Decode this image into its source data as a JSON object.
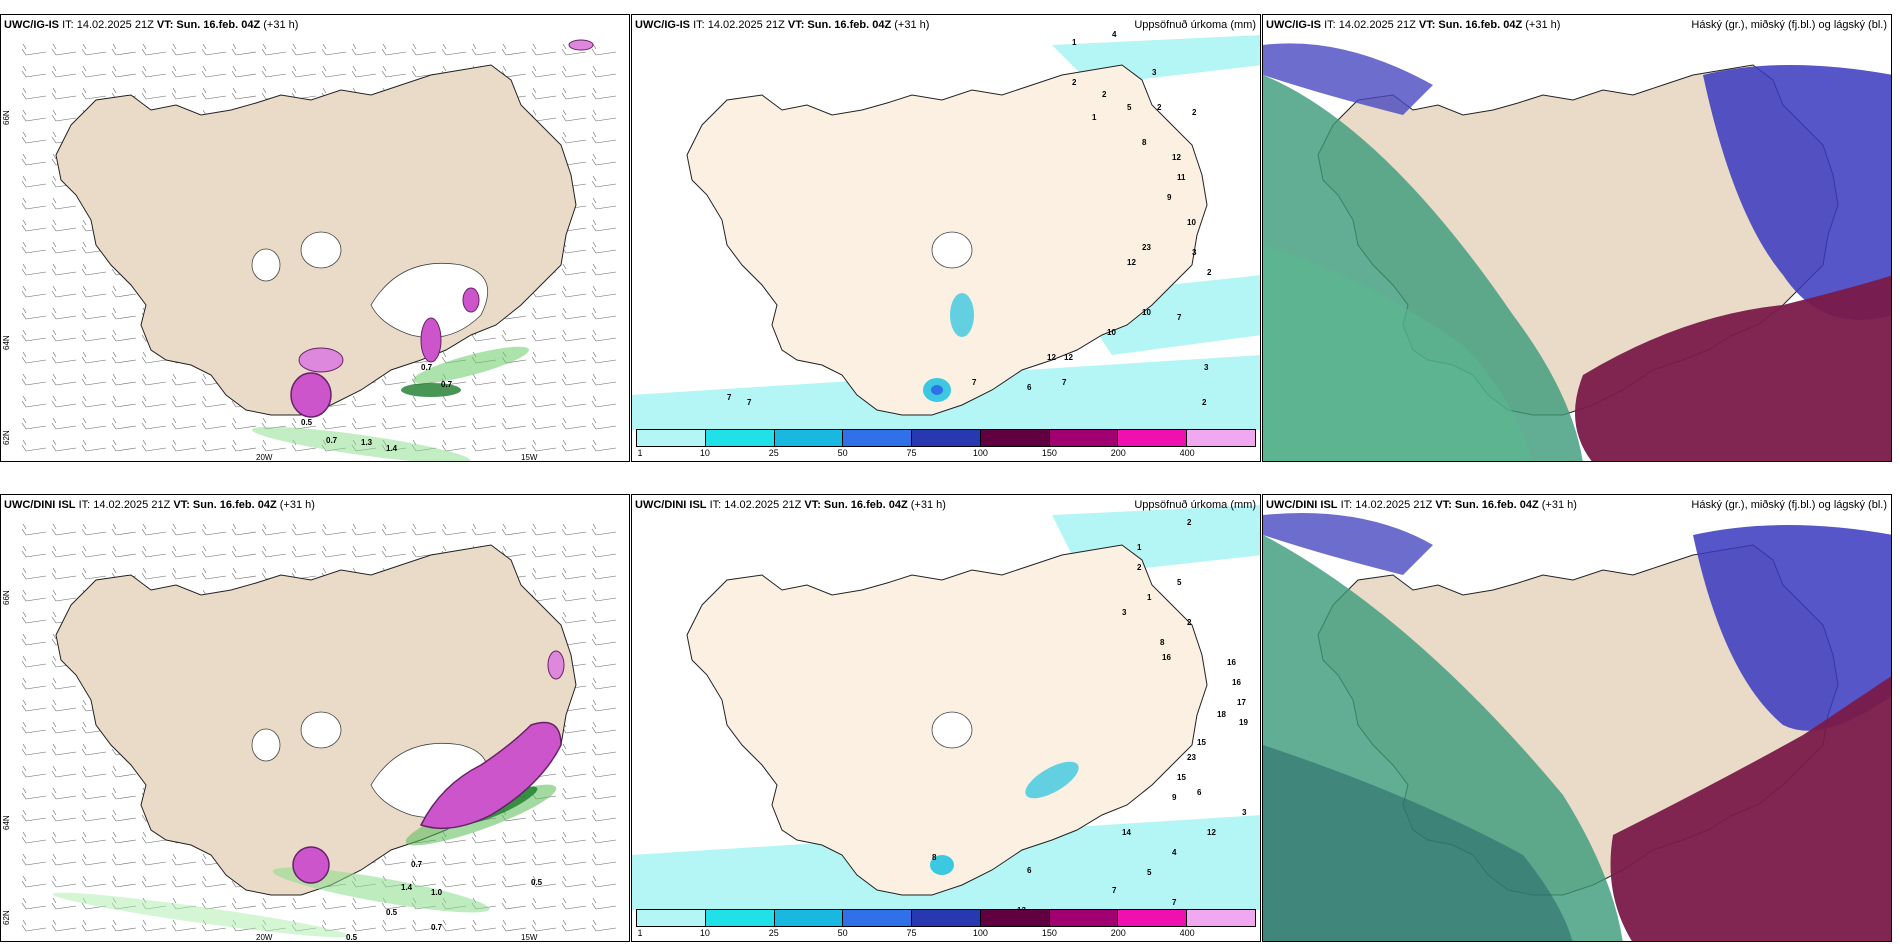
{
  "panels": {
    "top_left": {
      "model": "UWC/IG-IS",
      "it": "IT: 14.02.2025 21Z",
      "vt": "VT: Sun. 16.feb. 04Z",
      "lead": "(+31 h)"
    },
    "top_mid": {
      "model": "UWC/IG-IS",
      "it": "IT: 14.02.2025 21Z",
      "vt": "VT: Sun. 16.feb. 04Z",
      "lead": "(+31 h)",
      "title": "Uppsöfnuð úrkoma (mm)"
    },
    "top_right": {
      "model": "UWC/IG-IS",
      "it": "IT: 14.02.2025 21Z",
      "vt": "VT: Sun. 16.feb. 04Z",
      "lead": "(+31 h)",
      "title": "Háský (gr.), miðský (fj.bl.) og lágský (bl.)"
    },
    "bot_left": {
      "model": "UWC/DINI ISL",
      "it": "IT: 14.02.2025 21Z",
      "vt": "VT: Sun. 16.feb. 04Z",
      "lead": "(+31 h)"
    },
    "bot_mid": {
      "model": "UWC/DINI ISL",
      "it": "IT: 14.02.2025 21Z",
      "vt": "VT: Sun. 16.feb. 04Z",
      "lead": "(+31 h)",
      "title": "Uppsöfnuð úrkoma (mm)"
    },
    "bot_right": {
      "model": "UWC/DINI ISL",
      "it": "IT: 14.02.2025 21Z",
      "vt": "VT: Sun. 16.feb. 04Z",
      "lead": "(+31 h)",
      "title": "Háský (gr.), miðský (fj.bl.) og lágský (bl.)"
    }
  },
  "axes": {
    "lat_66": "66N",
    "lat_64": "64N",
    "lat_62": "62N",
    "lon_20": "20W",
    "lon_15": "15W"
  },
  "colorbar": {
    "ticks": [
      "1",
      "10",
      "25",
      "50",
      "75",
      "100",
      "150",
      "200",
      "400"
    ],
    "colors": [
      "#b4f5f5",
      "#20e0e8",
      "#18b8e0",
      "#3070e8",
      "#2838b0",
      "#600040",
      "#a00070",
      "#f010b0",
      "#f0a8f0"
    ]
  },
  "precip_top": [
    {
      "v": "1"
    },
    {
      "v": "4"
    },
    {
      "v": "3"
    },
    {
      "v": "2"
    },
    {
      "v": "2"
    },
    {
      "v": "5"
    },
    {
      "v": "2"
    },
    {
      "v": "1"
    },
    {
      "v": "8"
    },
    {
      "v": "2"
    },
    {
      "v": "12"
    },
    {
      "v": "11"
    },
    {
      "v": "9"
    },
    {
      "v": "10"
    },
    {
      "v": "23"
    },
    {
      "v": "12"
    },
    {
      "v": "3"
    },
    {
      "v": "2"
    },
    {
      "v": "10"
    },
    {
      "v": "7"
    },
    {
      "v": "10"
    },
    {
      "v": "12"
    },
    {
      "v": "12"
    },
    {
      "v": "3"
    },
    {
      "v": "7"
    },
    {
      "v": "6"
    },
    {
      "v": "7"
    },
    {
      "v": "7"
    },
    {
      "v": "7"
    },
    {
      "v": "2"
    }
  ],
  "precip_bot": [
    {
      "v": "2"
    },
    {
      "v": "1"
    },
    {
      "v": "2"
    },
    {
      "v": "5"
    },
    {
      "v": "1"
    },
    {
      "v": "3"
    },
    {
      "v": "2"
    },
    {
      "v": "8"
    },
    {
      "v": "16"
    },
    {
      "v": "16"
    },
    {
      "v": "17"
    },
    {
      "v": "19"
    },
    {
      "v": "18"
    },
    {
      "v": "15"
    },
    {
      "v": "23"
    },
    {
      "v": "15"
    },
    {
      "v": "9"
    },
    {
      "v": "14"
    },
    {
      "v": "12"
    },
    {
      "v": "5"
    },
    {
      "v": "4"
    },
    {
      "v": "6"
    },
    {
      "v": "3"
    },
    {
      "v": "16"
    },
    {
      "v": "6"
    },
    {
      "v": "7"
    },
    {
      "v": "8"
    },
    {
      "v": "7"
    },
    {
      "v": "13"
    }
  ],
  "snow_top": [
    "0.7",
    "0.7",
    "1.3",
    "1.4",
    "0.7",
    "0.5"
  ],
  "snow_bot": [
    "0.5",
    "0.7",
    "1.4",
    "1.0",
    "0.5",
    "0.7",
    "0.5"
  ]
}
